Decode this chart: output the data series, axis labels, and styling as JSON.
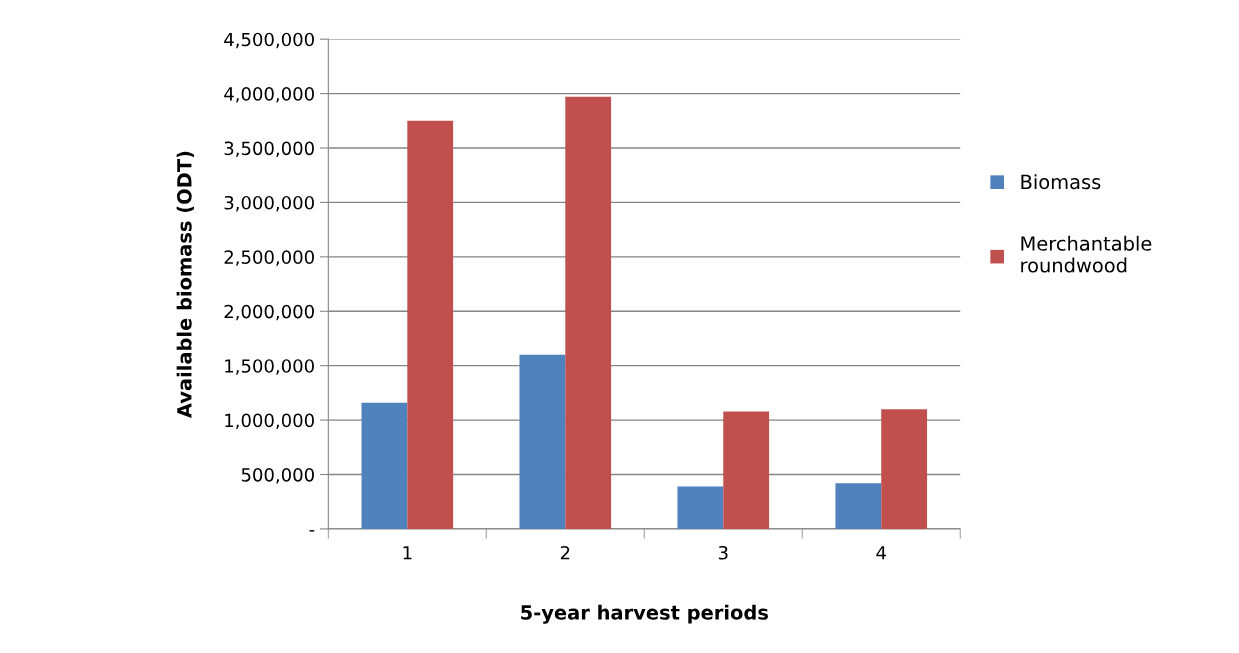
{
  "chart_data": {
    "type": "bar",
    "xlabel": "5-year harvest periods",
    "ylabel": "Available biomass (ODT)",
    "categories": [
      "1",
      "2",
      "3",
      "4"
    ],
    "series": [
      {
        "name": "Biomass",
        "color": "#4f81bd",
        "values": [
          1160000,
          1600000,
          390000,
          420000
        ]
      },
      {
        "name": "Merchantable\nroundwood",
        "color": "#c0504d",
        "values": [
          3750000,
          3970000,
          1080000,
          1100000
        ]
      }
    ],
    "ylim": [
      0,
      4500000
    ],
    "yticks": [
      {
        "value": 0,
        "label": "-"
      },
      {
        "value": 500000,
        "label": "500,000"
      },
      {
        "value": 1000000,
        "label": "1,000,000"
      },
      {
        "value": 1500000,
        "label": "1,500,000"
      },
      {
        "value": 2000000,
        "label": "2,000,000"
      },
      {
        "value": 2500000,
        "label": "2,500,000"
      },
      {
        "value": 3000000,
        "label": "3,000,000"
      },
      {
        "value": 3500000,
        "label": "3,500,000"
      },
      {
        "value": 4000000,
        "label": "4,000,000"
      },
      {
        "value": 4500000,
        "label": "4,500,000"
      }
    ],
    "grid": "y",
    "legend": "right"
  }
}
